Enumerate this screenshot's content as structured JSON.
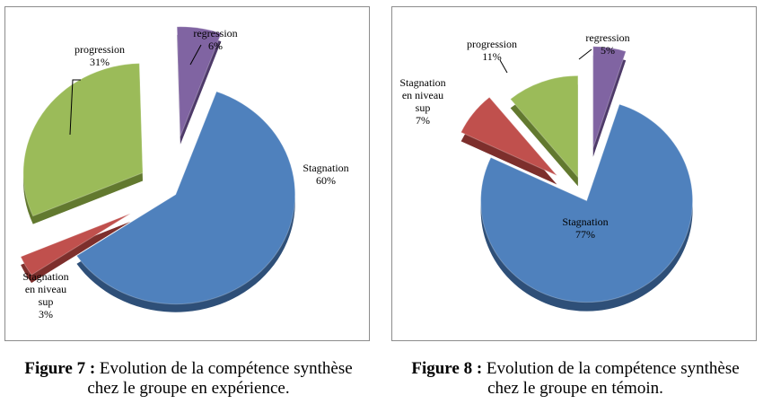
{
  "colors": {
    "stagnation": "#4f81bd",
    "stagnation_side": "#2e4f78",
    "progression": "#9bbb59",
    "progression_side": "#62792f",
    "regression": "#8064a2",
    "regression_side": "#4e3a69",
    "stagnation_niveau_sup": "#c0504d",
    "stagnation_niveau_sup_side": "#7d2f2c"
  },
  "figures": [
    {
      "caption_prefix": "Figure 7 :",
      "caption_line1": "Evolution de la compétence synthèse",
      "caption_line2": "chez le groupe en expérience."
    },
    {
      "caption_prefix": "Figure 8 :",
      "caption_line1": "Evolution de la compétence synthèse",
      "caption_line2": "chez le groupe en témoin."
    }
  ],
  "chart_data": [
    {
      "type": "pie",
      "exploded": true,
      "series": [
        {
          "key": "stagnation",
          "label_lines": [
            "Stagnation"
          ],
          "value": 60,
          "value_label": "60%"
        },
        {
          "key": "stagnation_niveau_sup",
          "label_lines": [
            "Stagnation",
            "en niveau",
            "sup"
          ],
          "value": 3,
          "value_label": "3%"
        },
        {
          "key": "progression",
          "label_lines": [
            "progression"
          ],
          "value": 31,
          "value_label": "31%"
        },
        {
          "key": "regression",
          "label_lines": [
            "regression"
          ],
          "value": 6,
          "value_label": "6%"
        }
      ]
    },
    {
      "type": "pie",
      "exploded": true,
      "series": [
        {
          "key": "stagnation",
          "label_lines": [
            "Stagnation"
          ],
          "value": 77,
          "value_label": "77%"
        },
        {
          "key": "stagnation_niveau_sup",
          "label_lines": [
            "Stagnation",
            "en niveau",
            "sup"
          ],
          "value": 7,
          "value_label": "7%"
        },
        {
          "key": "progression",
          "label_lines": [
            "progression"
          ],
          "value": 11,
          "value_label": "11%"
        },
        {
          "key": "regression",
          "label_lines": [
            "regression"
          ],
          "value": 5,
          "value_label": "5%"
        }
      ]
    }
  ]
}
